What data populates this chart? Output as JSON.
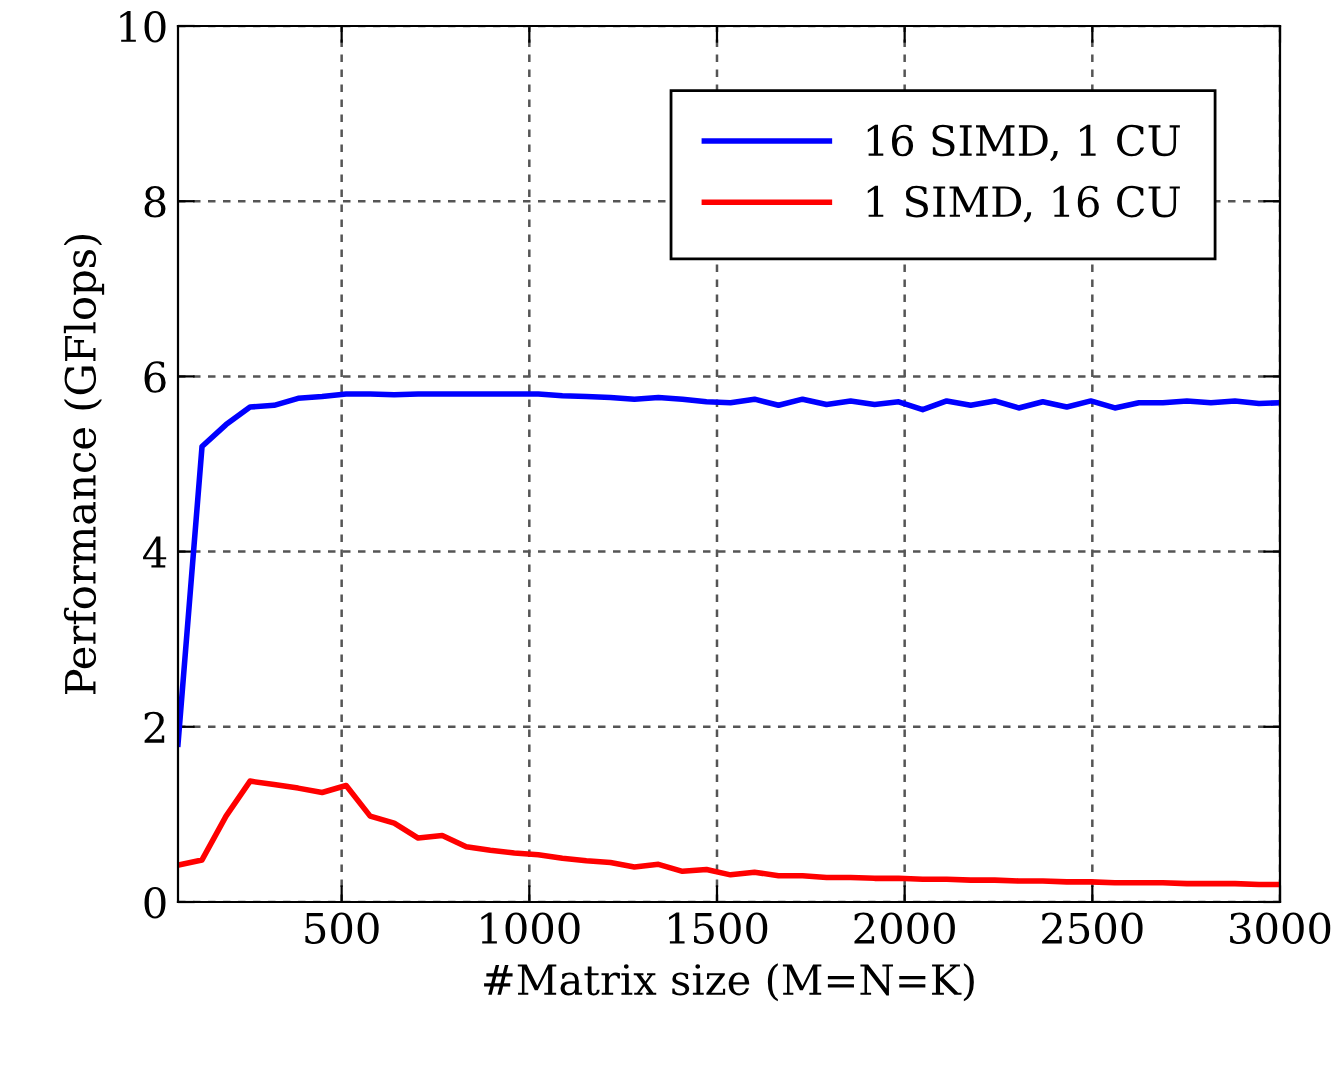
{
  "chart_data": {
    "type": "line",
    "xlabel": "#Matrix size (M=N=K)",
    "ylabel": "Performance (GFlops)",
    "x": [
      64,
      128,
      192,
      256,
      320,
      384,
      448,
      512,
      576,
      640,
      704,
      768,
      832,
      896,
      960,
      1024,
      1088,
      1152,
      1216,
      1280,
      1344,
      1408,
      1472,
      1536,
      1600,
      1664,
      1728,
      1792,
      1856,
      1920,
      1984,
      2048,
      2112,
      2176,
      2240,
      2304,
      2368,
      2432,
      2496,
      2560,
      2624,
      2688,
      2752,
      2816,
      2880,
      2944,
      3000
    ],
    "series": [
      {
        "name": "16 SIMD, 1 CU",
        "color": "#0000ff",
        "values": [
          1.8,
          5.2,
          5.45,
          5.65,
          5.67,
          5.75,
          5.77,
          5.8,
          5.8,
          5.79,
          5.8,
          5.8,
          5.8,
          5.8,
          5.8,
          5.8,
          5.78,
          5.77,
          5.76,
          5.74,
          5.76,
          5.74,
          5.71,
          5.7,
          5.74,
          5.67,
          5.74,
          5.68,
          5.72,
          5.68,
          5.71,
          5.62,
          5.72,
          5.67,
          5.72,
          5.64,
          5.71,
          5.65,
          5.72,
          5.64,
          5.7,
          5.7,
          5.72,
          5.7,
          5.72,
          5.69,
          5.7
        ]
      },
      {
        "name": "1 SIMD, 16 CU",
        "color": "#ff0000",
        "values": [
          0.42,
          0.48,
          0.98,
          1.38,
          1.34,
          1.3,
          1.25,
          1.33,
          0.98,
          0.9,
          0.73,
          0.76,
          0.63,
          0.59,
          0.56,
          0.54,
          0.5,
          0.47,
          0.45,
          0.4,
          0.43,
          0.35,
          0.37,
          0.31,
          0.34,
          0.3,
          0.3,
          0.28,
          0.28,
          0.27,
          0.27,
          0.26,
          0.26,
          0.25,
          0.25,
          0.24,
          0.24,
          0.23,
          0.23,
          0.22,
          0.22,
          0.22,
          0.21,
          0.21,
          0.21,
          0.2,
          0.2
        ]
      }
    ],
    "xlim": [
      64,
      3000
    ],
    "xticks": [
      500,
      1000,
      1500,
      2000,
      2500,
      3000
    ],
    "ylim": [
      0,
      10
    ],
    "yticks": [
      0,
      2,
      4,
      6,
      8,
      10
    ],
    "grid": true,
    "legend": "top right",
    "marker": "none",
    "line_style": "solid"
  }
}
